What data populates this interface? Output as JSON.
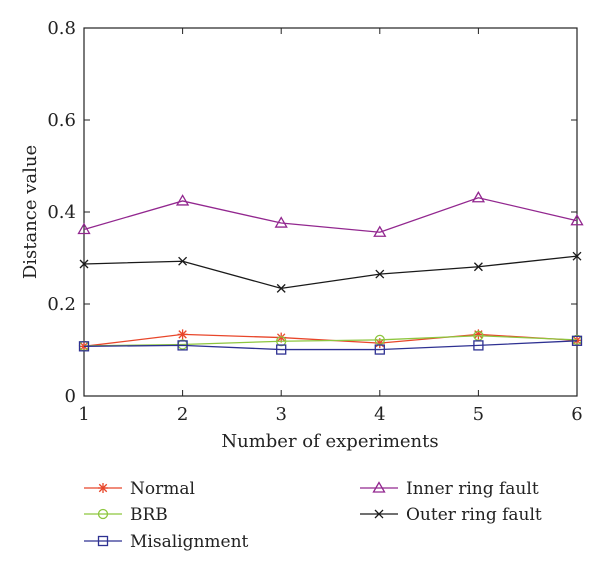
{
  "chart_data": {
    "type": "line",
    "title": "",
    "xlabel": "Number of experiments",
    "ylabel": "Distance value",
    "x": [
      1,
      2,
      3,
      4,
      5,
      6
    ],
    "xlim": [
      1,
      6
    ],
    "ylim": [
      0,
      0.8
    ],
    "xticks": [
      "1",
      "2",
      "3",
      "4",
      "5",
      "6"
    ],
    "yticks": [
      "0",
      "0.2",
      "0.4",
      "0.6",
      "0.8"
    ],
    "grid": false,
    "legend_position": "bottom",
    "series": [
      {
        "name": "Normal",
        "values": [
          0.108,
          0.134,
          0.127,
          0.115,
          0.134,
          0.121
        ],
        "color": "#e8462a",
        "marker": "asterisk"
      },
      {
        "name": "BRB",
        "values": [
          0.109,
          0.112,
          0.119,
          0.122,
          0.131,
          0.122
        ],
        "color": "#8dc63f",
        "marker": "circle"
      },
      {
        "name": "Misalignment",
        "values": [
          0.108,
          0.11,
          0.101,
          0.101,
          0.11,
          0.12
        ],
        "color": "#2e3192",
        "marker": "square"
      },
      {
        "name": "Inner ring fault",
        "values": [
          0.362,
          0.424,
          0.376,
          0.356,
          0.431,
          0.381
        ],
        "color": "#92278f",
        "marker": "triangle"
      },
      {
        "name": "Outer ring fault",
        "values": [
          0.287,
          0.293,
          0.234,
          0.265,
          0.281,
          0.304
        ],
        "color": "#1a1a1a",
        "marker": "x"
      }
    ]
  }
}
